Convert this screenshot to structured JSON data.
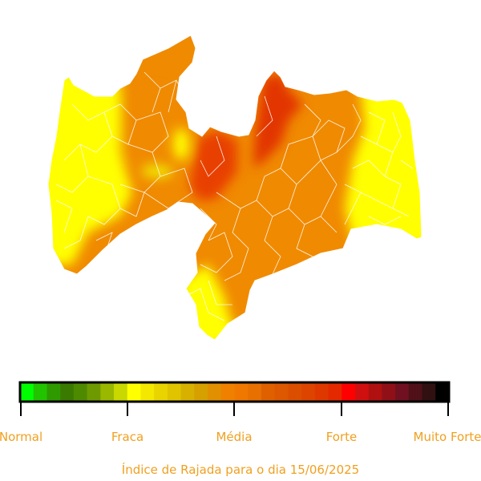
{
  "legend": {
    "labels": [
      "Normal",
      "Fraca",
      "Média",
      "Forte",
      "Muito Forte"
    ],
    "colors": [
      "#00ff00",
      "#22c400",
      "#2f9a00",
      "#3a7a00",
      "#4e8a00",
      "#6e9a00",
      "#9ab800",
      "#c8d800",
      "#ffff00",
      "#f4e800",
      "#ead400",
      "#e0c400",
      "#d8b000",
      "#d6a000",
      "#e09000",
      "#f08000",
      "#f07800",
      "#e87000",
      "#e06000",
      "#dd5800",
      "#db4e00",
      "#dc4400",
      "#de3800",
      "#e42800",
      "#ff0000",
      "#d01010",
      "#b01010",
      "#901018",
      "#701020",
      "#501018",
      "#301010",
      "#000000"
    ],
    "level_colors": {
      "normal": "#00ff00",
      "fraca": "#ffff00",
      "media": "#ff8000",
      "forte": "#ff0000",
      "muito_forte": "#000000"
    }
  },
  "caption": "Índice de Rajada para o dia 15/06/2025"
}
